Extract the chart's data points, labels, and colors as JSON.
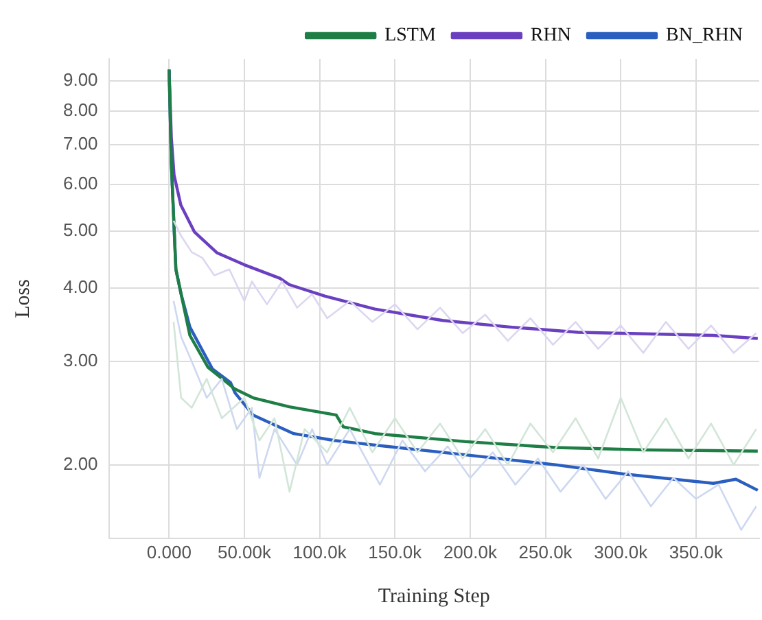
{
  "chart_data": {
    "type": "line",
    "xlabel": "Training Step",
    "ylabel": "Loss",
    "log": "y",
    "grid": true,
    "legend": "top right",
    "marker": "none",
    "line_style": "solid",
    "xlim": [
      -40000,
      392000
    ],
    "ylim": [
      1.5,
      9.8
    ],
    "xticks": [
      {
        "value": 0,
        "label": "0.000"
      },
      {
        "value": 50000,
        "label": "50.00k"
      },
      {
        "value": 100000,
        "label": "100.0k"
      },
      {
        "value": 150000,
        "label": "150.0k"
      },
      {
        "value": 200000,
        "label": "200.0k"
      },
      {
        "value": 250000,
        "label": "250.0k"
      },
      {
        "value": 300000,
        "label": "300.0k"
      },
      {
        "value": 350000,
        "label": "350.0k"
      }
    ],
    "yticks": [
      {
        "value": 2,
        "label": "2.00"
      },
      {
        "value": 3,
        "label": "3.00"
      },
      {
        "value": 4,
        "label": "4.00"
      },
      {
        "value": 5,
        "label": "5.00"
      },
      {
        "value": 6,
        "label": "6.00"
      },
      {
        "value": 7,
        "label": "7.00"
      },
      {
        "value": 8,
        "label": "8.00"
      },
      {
        "value": 9,
        "label": "9.00"
      }
    ],
    "series": [
      {
        "color": "#dcd6f0",
        "x": [
          3000,
          8000,
          15000,
          22000,
          30000,
          40000,
          50000,
          55000,
          65000,
          75000,
          85000,
          95000,
          105000,
          120000,
          135000,
          150000,
          165000,
          180000,
          195000,
          210000,
          225000,
          240000,
          255000,
          270000,
          285000,
          300000,
          315000,
          330000,
          345000,
          360000,
          375000,
          390000
        ],
        "values": [
          5.2,
          4.9,
          4.6,
          4.5,
          4.2,
          4.3,
          3.8,
          4.1,
          3.75,
          4.1,
          3.7,
          3.9,
          3.55,
          3.8,
          3.5,
          3.75,
          3.4,
          3.7,
          3.35,
          3.6,
          3.25,
          3.55,
          3.2,
          3.5,
          3.15,
          3.45,
          3.1,
          3.5,
          3.15,
          3.45,
          3.1,
          3.35
        ]
      },
      {
        "color": "#d2e6d8",
        "x": [
          3000,
          8000,
          15000,
          25000,
          35000,
          50000,
          60000,
          70000,
          80000,
          90000,
          105000,
          120000,
          135000,
          150000,
          165000,
          180000,
          195000,
          210000,
          225000,
          240000,
          255000,
          270000,
          285000,
          300000,
          315000,
          330000,
          345000,
          360000,
          375000,
          390000
        ],
        "values": [
          3.5,
          2.6,
          2.5,
          2.8,
          2.4,
          2.6,
          2.2,
          2.4,
          1.8,
          2.3,
          2.1,
          2.5,
          2.1,
          2.4,
          2.1,
          2.35,
          2.05,
          2.3,
          2.0,
          2.35,
          2.1,
          2.4,
          2.05,
          2.6,
          2.1,
          2.4,
          2.05,
          2.35,
          2.0,
          2.3
        ]
      },
      {
        "color": "#cdd8f0",
        "x": [
          3000,
          8000,
          15000,
          25000,
          35000,
          45000,
          55000,
          60000,
          70000,
          85000,
          95000,
          105000,
          120000,
          140000,
          155000,
          170000,
          185000,
          200000,
          215000,
          230000,
          245000,
          260000,
          275000,
          290000,
          305000,
          320000,
          335000,
          350000,
          365000,
          380000,
          390000
        ],
        "values": [
          3.8,
          3.3,
          3.0,
          2.6,
          2.8,
          2.3,
          2.5,
          1.9,
          2.3,
          2.0,
          2.3,
          2.0,
          2.3,
          1.85,
          2.2,
          1.95,
          2.15,
          1.9,
          2.1,
          1.85,
          2.05,
          1.8,
          2.0,
          1.75,
          1.95,
          1.7,
          1.9,
          1.75,
          1.85,
          1.55,
          1.7
        ]
      },
      {
        "name": "LSTM",
        "color": "#1e7e46",
        "x": [
          0,
          1500,
          4500,
          8000,
          13800,
          25800,
          43800,
          55800,
          79800,
          111000,
          115700,
          136700,
          196700,
          256600,
          316500,
          391000
        ],
        "values": [
          9.4,
          6.5,
          4.3,
          3.9,
          3.32,
          2.93,
          2.69,
          2.6,
          2.51,
          2.43,
          2.32,
          2.26,
          2.19,
          2.14,
          2.12,
          2.11
        ]
      },
      {
        "name": "RHN",
        "color": "#6a3fc0",
        "x": [
          0,
          1500,
          3300,
          7800,
          16800,
          31700,
          49700,
          73700,
          79800,
          103700,
          136700,
          181700,
          226600,
          271600,
          316500,
          361500,
          391000
        ],
        "values": [
          9.4,
          7.2,
          6.22,
          5.53,
          4.98,
          4.59,
          4.38,
          4.15,
          4.05,
          3.87,
          3.68,
          3.52,
          3.43,
          3.36,
          3.34,
          3.32,
          3.28
        ]
      },
      {
        "name": "BN_RHN",
        "color": "#2a5fc0",
        "x": [
          0,
          1500,
          4500,
          8000,
          13800,
          28800,
          40800,
          43800,
          55800,
          82700,
          109700,
          136700,
          196700,
          256600,
          301500,
          361500,
          376500,
          391000
        ],
        "values": [
          9.4,
          6.5,
          4.3,
          3.9,
          3.43,
          2.91,
          2.76,
          2.65,
          2.43,
          2.26,
          2.2,
          2.16,
          2.08,
          2.0,
          1.93,
          1.86,
          1.89,
          1.81
        ]
      }
    ]
  }
}
